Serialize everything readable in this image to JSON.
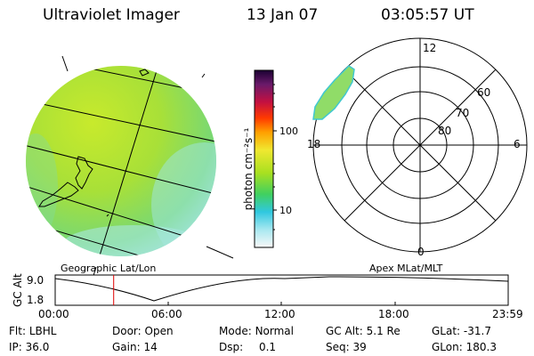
{
  "header": {
    "instrument": "Ultraviolet Imager",
    "date": "13 Jan 07",
    "time": "03:05:57 UT"
  },
  "geo_panel": {
    "caption": "Geographic Lat/Lon"
  },
  "polar_panel": {
    "caption": "Apex MLat/MLT",
    "mlt_labels": {
      "top": "12",
      "left": "18",
      "right": "6",
      "bottom": "0"
    },
    "lat_rings": [
      "60",
      "70",
      "80"
    ]
  },
  "colorbar": {
    "unit_label": "photon cm⁻²s⁻¹",
    "ticks": [
      "100",
      "10"
    ],
    "scale": "log",
    "colors": [
      "#1a0033",
      "#6a1a6a",
      "#c41040",
      "#ff3a00",
      "#ffa000",
      "#f0e830",
      "#a8e020",
      "#40d060",
      "#30c8e0",
      "#a8e8f0",
      "#f8f8f8"
    ]
  },
  "timeline": {
    "ylabel": "GC Alt",
    "yticks": [
      "9.0",
      "1.8"
    ],
    "xticks": [
      "00:00",
      "06:00",
      "12:00",
      "18:00",
      "23:59"
    ],
    "current_time_label": "03:05:57",
    "current_time_fraction": 0.1291
  },
  "footer": {
    "row1": [
      {
        "label": "Flt:",
        "value": "LBHL"
      },
      {
        "label": "Door:",
        "value": "Open"
      },
      {
        "label": "Mode:",
        "value": "Normal"
      },
      {
        "label": "GC Alt:",
        "value": "5.1 Re"
      },
      {
        "label": "GLat:",
        "value": "-31.7"
      }
    ],
    "row2": [
      {
        "label": "IP:",
        "value": "36.0"
      },
      {
        "label": "Gain:",
        "value": "14"
      },
      {
        "label": "Dsp:",
        "value": "0.1"
      },
      {
        "label": "Seq:",
        "value": "39"
      },
      {
        "label": "GLon:",
        "value": "180.3"
      }
    ]
  }
}
